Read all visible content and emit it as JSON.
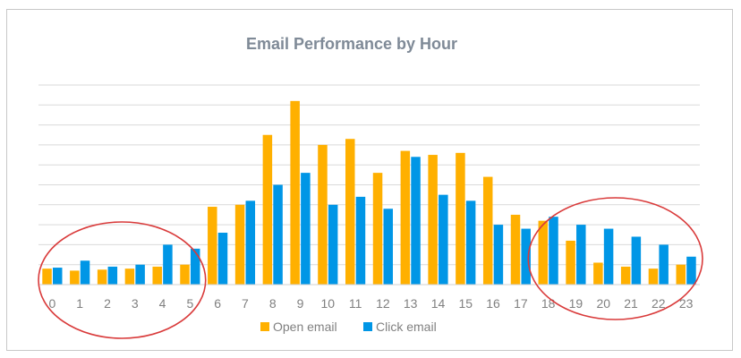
{
  "chart_data": {
    "type": "bar",
    "title": "Email Performance by Hour",
    "xlabel": "",
    "ylabel": "",
    "categories": [
      "0",
      "1",
      "2",
      "3",
      "4",
      "5",
      "6",
      "7",
      "8",
      "9",
      "10",
      "11",
      "12",
      "13",
      "14",
      "15",
      "16",
      "17",
      "18",
      "19",
      "20",
      "21",
      "22",
      "23"
    ],
    "series": [
      {
        "name": "Open email",
        "color": "#ffb000",
        "values": [
          8,
          7,
          7.5,
          8,
          9,
          10,
          39,
          40,
          75,
          92,
          70,
          73,
          56,
          67,
          65,
          66,
          54,
          35,
          32,
          22,
          11,
          9,
          8,
          10
        ]
      },
      {
        "name": "Click email",
        "color": "#0096e6",
        "values": [
          8.5,
          12,
          9,
          10,
          20,
          18,
          26,
          42,
          50,
          56,
          40,
          44,
          38,
          64,
          45,
          42,
          30,
          28,
          34,
          30,
          28,
          24,
          20,
          14
        ]
      }
    ],
    "ylim": [
      0,
      100
    ],
    "grid": true,
    "legend": "bottom",
    "annotations": [
      {
        "shape": "ellipse",
        "color": "#d93a3a",
        "covers": [
          "0",
          "1",
          "2",
          "3",
          "4",
          "5"
        ]
      },
      {
        "shape": "ellipse",
        "color": "#d93a3a",
        "covers": [
          "18",
          "19",
          "20",
          "21",
          "22",
          "23"
        ]
      }
    ]
  }
}
